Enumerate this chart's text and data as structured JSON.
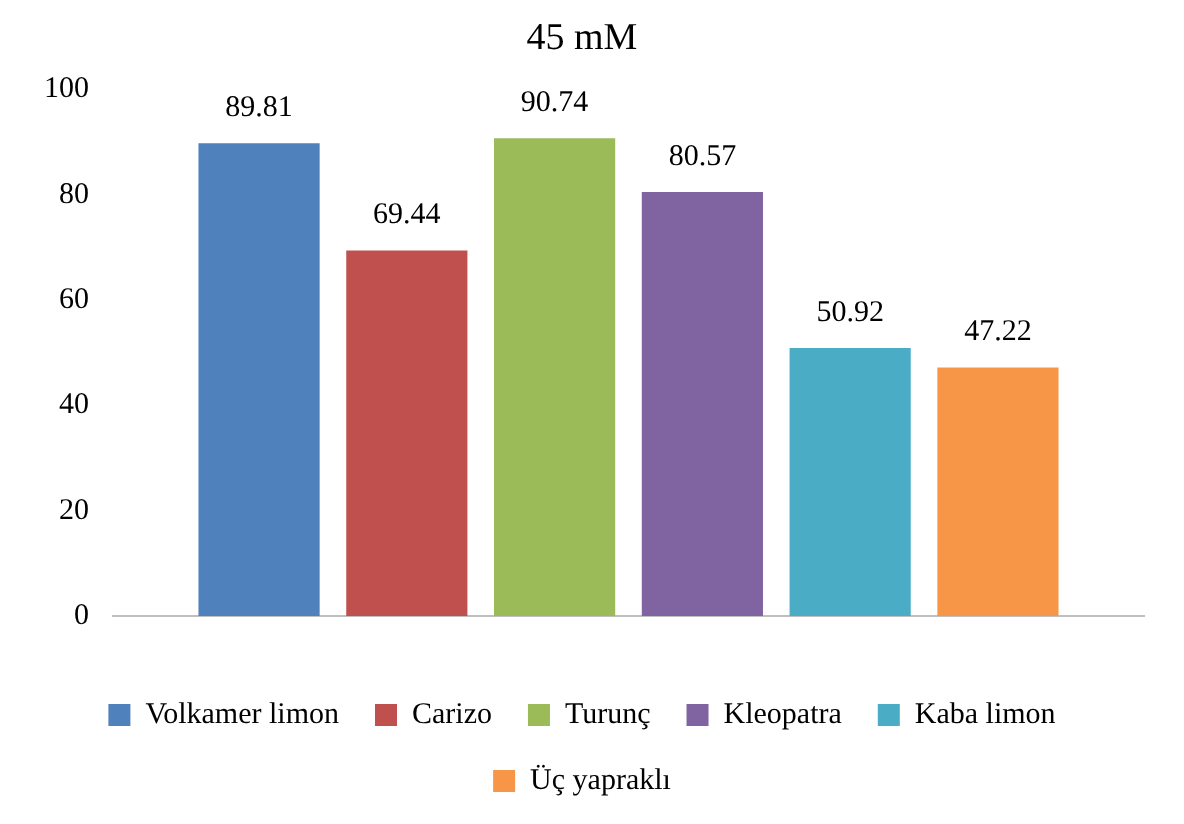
{
  "chart_data": {
    "type": "bar",
    "title": "45 mM",
    "categories": [
      null
    ],
    "series": [
      {
        "name": "Volkamer limon",
        "color": "#4f81bd",
        "values": [
          89.81
        ]
      },
      {
        "name": "Carizo",
        "color": "#c0504d",
        "values": [
          69.44
        ]
      },
      {
        "name": "Turunç",
        "color": "#9bbb59",
        "values": [
          90.74
        ]
      },
      {
        "name": "Kleopatra",
        "color": "#8064a2",
        "values": [
          80.57
        ]
      },
      {
        "name": "Kaba limon",
        "color": "#4bacc6",
        "values": [
          50.92
        ]
      },
      {
        "name": "Üç yapraklı",
        "color": "#f79646",
        "values": [
          47.22
        ]
      }
    ],
    "ylim": [
      0,
      100
    ],
    "yticks": [
      0,
      20,
      40,
      60,
      80,
      100
    ],
    "grid": false,
    "legend": "bottom",
    "data_labels": true
  }
}
